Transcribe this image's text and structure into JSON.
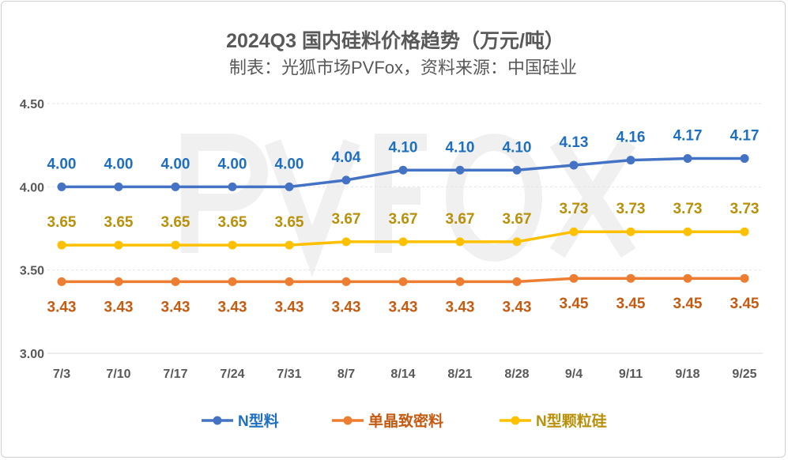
{
  "chart_data": {
    "type": "line",
    "title": "2024Q3 国内硅料价格趋势（万元/吨）",
    "subtitle": "制表：光狐市场PVFox，资料来源：中国硅业",
    "watermark": "PVFOX",
    "categories": [
      "7/3",
      "7/10",
      "7/17",
      "7/24",
      "7/31",
      "8/7",
      "8/14",
      "8/21",
      "8/28",
      "9/4",
      "9/11",
      "9/18",
      "9/25"
    ],
    "ylim": [
      3.0,
      4.5
    ],
    "yticks": [
      "3.00",
      "3.50",
      "4.00",
      "4.50"
    ],
    "grid": true,
    "legend_position": "bottom",
    "series": [
      {
        "name": "N型料",
        "color": "#4472c4",
        "label_color": "#1f6fbf",
        "label_pos": "above",
        "values": [
          4.0,
          4.0,
          4.0,
          4.0,
          4.0,
          4.04,
          4.1,
          4.1,
          4.1,
          4.13,
          4.16,
          4.17,
          4.17
        ]
      },
      {
        "name": "单晶致密料",
        "color": "#ed7d31",
        "label_color": "#c55a11",
        "label_pos": "below",
        "values": [
          3.43,
          3.43,
          3.43,
          3.43,
          3.43,
          3.43,
          3.43,
          3.43,
          3.43,
          3.45,
          3.45,
          3.45,
          3.45
        ]
      },
      {
        "name": "N型颗粒硅",
        "color": "#ffc000",
        "label_color": "#b8900a",
        "label_pos": "above",
        "values": [
          3.65,
          3.65,
          3.65,
          3.65,
          3.65,
          3.67,
          3.67,
          3.67,
          3.67,
          3.73,
          3.73,
          3.73,
          3.73
        ]
      }
    ]
  }
}
